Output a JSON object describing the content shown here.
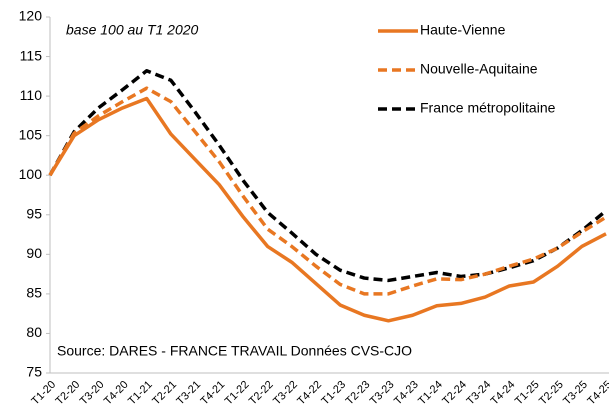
{
  "chart_data": {
    "type": "line",
    "annotation": "base 100  au T1 2020",
    "source": "Source: DARES - FRANCE TRAVAIL  Données CVS-CJO",
    "categories": [
      "T1-20",
      "T2-20",
      "T3-20",
      "T4-20",
      "T1-21",
      "T2-21",
      "T3-21",
      "T4-21",
      "T1-22",
      "T2-22",
      "T3-22",
      "T4-22",
      "T1-23",
      "T2-23",
      "T3-23",
      "T4-23",
      "T1-24",
      "T2-24",
      "T3-24",
      "T4-24",
      "T1-25",
      "T2-25",
      "T3-25",
      "T4-25"
    ],
    "series": [
      {
        "name": "Haute-Vienne",
        "color": "#e87722",
        "dash": "solid",
        "values": [
          100,
          105,
          107,
          108.5,
          109.7,
          105.2,
          102,
          98.8,
          94.7,
          91,
          89,
          86.3,
          83.6,
          82.3,
          81.6,
          82.3,
          83.5,
          83.8,
          84.6,
          86,
          86.5,
          88.5,
          91,
          92.6
        ]
      },
      {
        "name": "Nouvelle-Aquitaine",
        "color": "#e87722",
        "dash": "dashed",
        "values": [
          100,
          105.3,
          107.5,
          109.3,
          111,
          109.3,
          105.5,
          101.7,
          97.3,
          93.2,
          91,
          88.5,
          86.2,
          85,
          85,
          86,
          86.9,
          86.8,
          87.5,
          88.5,
          89.4,
          90.8,
          92.8,
          94.7
        ]
      },
      {
        "name": "France métropolitaine",
        "color": "#000000",
        "dash": "dashed",
        "values": [
          100,
          105.5,
          108.5,
          110.8,
          113.2,
          112,
          108,
          103.8,
          99.3,
          95.3,
          92.7,
          90,
          88,
          87,
          86.7,
          87.2,
          87.7,
          87.2,
          87.5,
          88.3,
          89.2,
          90.8,
          93,
          95.5
        ]
      }
    ],
    "ylim": [
      75,
      120
    ],
    "yticks": [
      75,
      80,
      85,
      90,
      95,
      100,
      105,
      110,
      115,
      120
    ],
    "grid": false,
    "legend": "upper right"
  }
}
